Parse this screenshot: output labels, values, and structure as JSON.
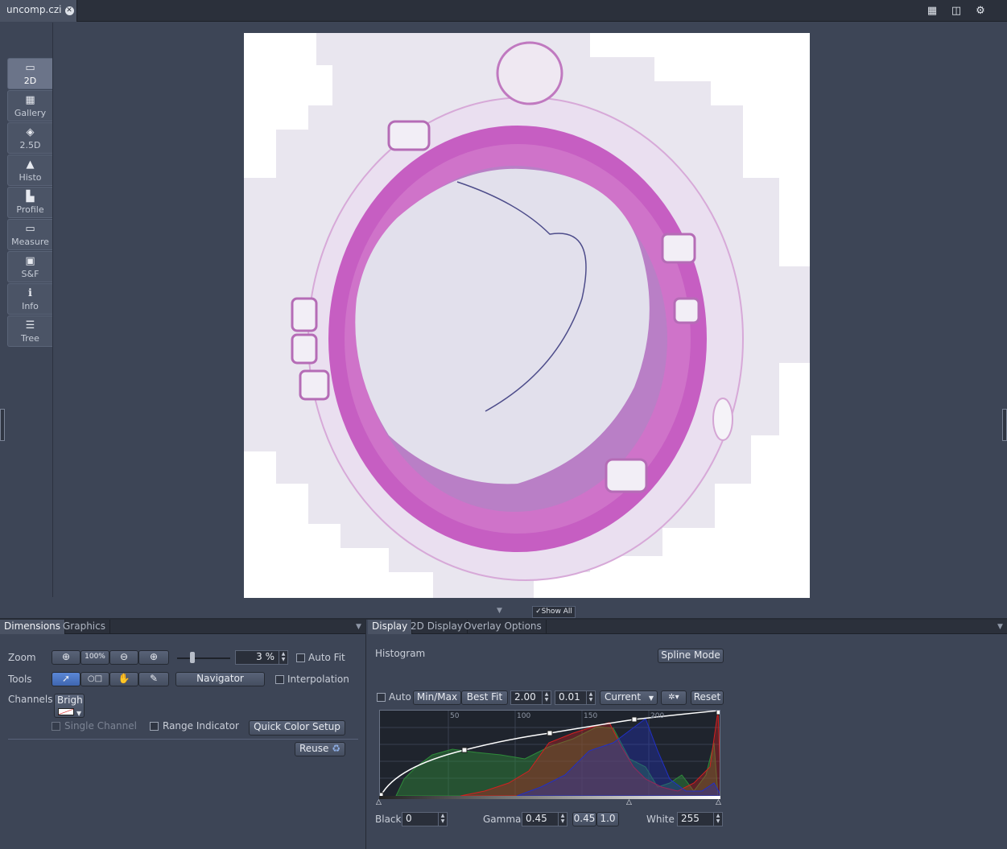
{
  "tab": {
    "title": "uncomp.czi"
  },
  "view_modes": [
    {
      "label": "2D",
      "icon": "2d-view-icon",
      "active": true
    },
    {
      "label": "Gallery",
      "icon": "gallery-grid-icon",
      "active": false
    },
    {
      "label": "2.5D",
      "icon": "2-5d-icon",
      "active": false
    },
    {
      "label": "Histo",
      "icon": "histogram-icon",
      "active": false
    },
    {
      "label": "Profile",
      "icon": "profile-icon",
      "active": false
    },
    {
      "label": "Measure",
      "icon": "measure-icon",
      "active": false
    },
    {
      "label": "S&F",
      "icon": "s-and-f-icon",
      "active": false
    },
    {
      "label": "Info",
      "icon": "info-icon",
      "active": false
    },
    {
      "label": "Tree",
      "icon": "tree-icon",
      "active": false
    }
  ],
  "show_all": "✓Show All",
  "left_tabs": [
    "Dimensions",
    "Graphics"
  ],
  "dimensions": {
    "zoom_label": "Zoom",
    "zoom_100": "100%",
    "zoom_value": "3 %",
    "auto_fit": "Auto Fit",
    "tools_label": "Tools",
    "navigator": "Navigator",
    "interpolation": "Interpolation",
    "channels_label": "Channels",
    "channel_name": "Brigh",
    "single_channel": "Single Channel",
    "range_indicator": "Range Indicator",
    "quick_color_setup": "Quick Color Setup",
    "reuse": "Reuse"
  },
  "right_tabs": [
    "Display",
    "2D Display",
    "Overlay Options"
  ],
  "display": {
    "histogram_label": "Histogram",
    "spline_mode": "Spline Mode",
    "auto": "Auto",
    "min_max": "Min/Max",
    "best_fit": "Best Fit",
    "value_a": "2.00",
    "value_b": "0.01",
    "current": "Current",
    "reset": "Reset",
    "ticks": [
      "50",
      "100",
      "150",
      "200"
    ],
    "black_label": "Black",
    "black_value": "0",
    "gamma_label": "Gamma",
    "gamma_value": "0.45",
    "gamma_preset_1": "0.45",
    "gamma_preset_2": "1.0",
    "white_label": "White",
    "white_value": "255"
  },
  "colors": {
    "accent": "#4f7bcc",
    "channel_green": "#2e8b3a",
    "channel_red": "#d42020",
    "channel_blue": "#2030c8",
    "stain_pink": "#c659c0"
  }
}
